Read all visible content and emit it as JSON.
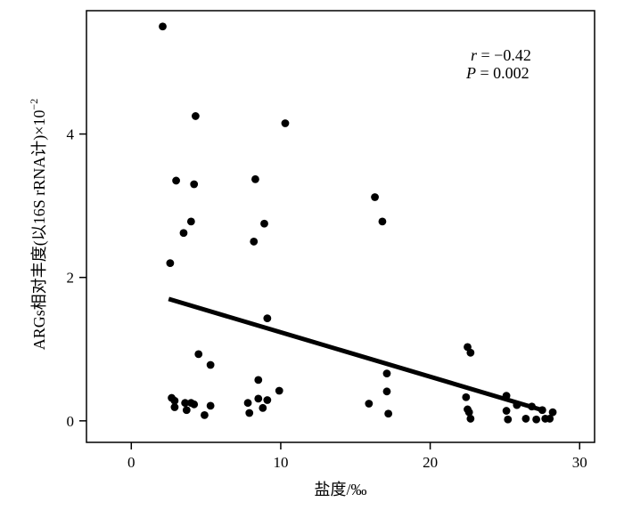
{
  "chart_data": {
    "type": "scatter",
    "xlabel": "盐度/‰",
    "ylabel_main": "ARGs相对丰度(以16S rRNA计)×10",
    "ylabel_exp": "−2",
    "xlim": [
      -3,
      31
    ],
    "ylim": [
      -0.3,
      5.72
    ],
    "xticks": [
      0,
      10,
      20,
      30
    ],
    "yticks": [
      0,
      2,
      4
    ],
    "annotations": {
      "r_symbol": "r",
      "r_value": " = −0.42",
      "p_symbol": "P",
      "p_value": " = 0.002"
    },
    "trendline": {
      "x": [
        2.5,
        27.5
      ],
      "y": [
        1.7,
        0.15
      ]
    },
    "points": [
      [
        2.1,
        5.5
      ],
      [
        4.3,
        4.25
      ],
      [
        10.3,
        4.15
      ],
      [
        3.0,
        3.35
      ],
      [
        4.2,
        3.3
      ],
      [
        8.3,
        3.37
      ],
      [
        4.0,
        2.78
      ],
      [
        3.5,
        2.62
      ],
      [
        8.9,
        2.75
      ],
      [
        8.2,
        2.5
      ],
      [
        16.3,
        3.12
      ],
      [
        16.8,
        2.78
      ],
      [
        2.6,
        2.2
      ],
      [
        9.1,
        1.43
      ],
      [
        22.5,
        1.03
      ],
      [
        22.7,
        0.95
      ],
      [
        4.5,
        0.93
      ],
      [
        5.3,
        0.78
      ],
      [
        17.1,
        0.66
      ],
      [
        8.5,
        0.57
      ],
      [
        17.1,
        0.41
      ],
      [
        9.9,
        0.42
      ],
      [
        2.7,
        0.32
      ],
      [
        2.9,
        0.28
      ],
      [
        3.6,
        0.25
      ],
      [
        4.0,
        0.25
      ],
      [
        4.2,
        0.23
      ],
      [
        5.3,
        0.21
      ],
      [
        2.9,
        0.19
      ],
      [
        3.7,
        0.15
      ],
      [
        4.9,
        0.08
      ],
      [
        7.8,
        0.25
      ],
      [
        8.5,
        0.31
      ],
      [
        9.1,
        0.29
      ],
      [
        8.8,
        0.18
      ],
      [
        7.9,
        0.11
      ],
      [
        15.9,
        0.24
      ],
      [
        17.2,
        0.1
      ],
      [
        22.4,
        0.33
      ],
      [
        22.5,
        0.16
      ],
      [
        22.6,
        0.12
      ],
      [
        22.7,
        0.03
      ],
      [
        25.1,
        0.35
      ],
      [
        25.1,
        0.14
      ],
      [
        25.2,
        0.02
      ],
      [
        25.8,
        0.22
      ],
      [
        26.4,
        0.03
      ],
      [
        26.8,
        0.2
      ],
      [
        27.1,
        0.02
      ],
      [
        27.5,
        0.15
      ],
      [
        27.7,
        0.03
      ],
      [
        28.0,
        0.03
      ],
      [
        28.2,
        0.12
      ]
    ]
  }
}
